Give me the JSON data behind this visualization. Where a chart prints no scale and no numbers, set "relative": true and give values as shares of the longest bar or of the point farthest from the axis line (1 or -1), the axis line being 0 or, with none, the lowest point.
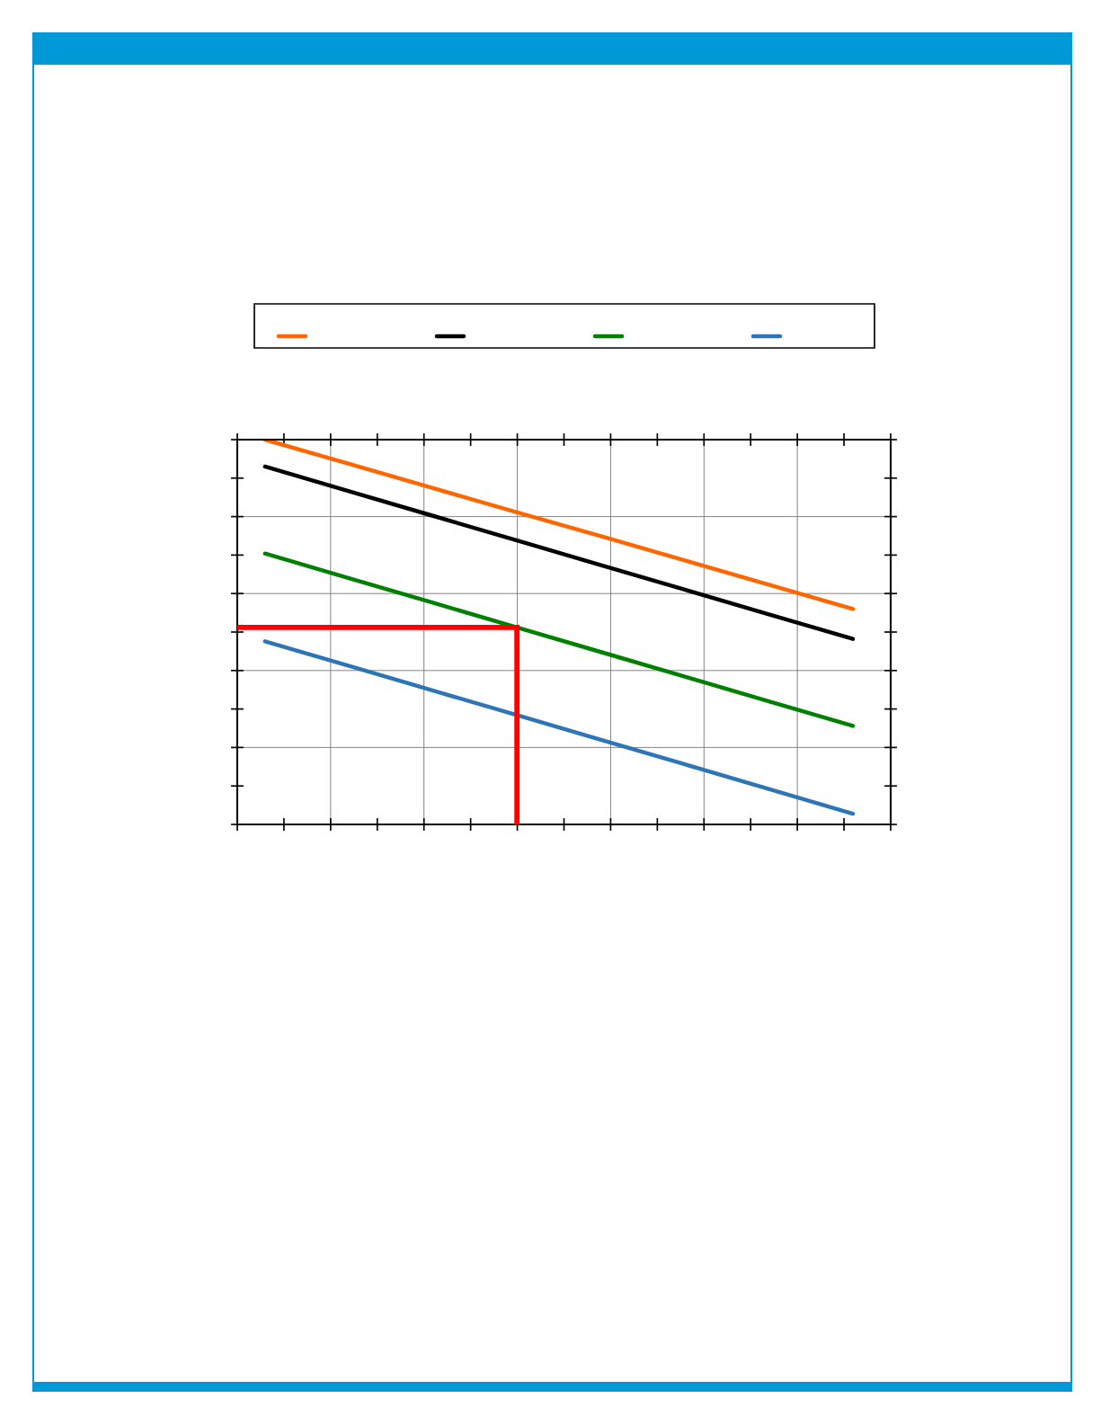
{
  "chart_data": {
    "type": "line",
    "relative": true,
    "categories": [
      null,
      null,
      null,
      null,
      null,
      null,
      null,
      null
    ],
    "series": [
      {
        "color": "#ff6600",
        "values": [
          1.0,
          0.937,
          0.874,
          0.811,
          0.749,
          0.686,
          0.623,
          0.56
        ]
      },
      {
        "color": "#000000",
        "values": [
          0.93,
          0.866,
          0.802,
          0.738,
          0.674,
          0.61,
          0.546,
          0.482
        ]
      },
      {
        "color": "#008000",
        "values": [
          0.704,
          0.64,
          0.576,
          0.512,
          0.448,
          0.384,
          0.32,
          0.256
        ]
      },
      {
        "color": "#2e75b6",
        "values": [
          0.476,
          0.412,
          0.348,
          0.284,
          0.22,
          0.156,
          0.092,
          0.028
        ]
      }
    ],
    "ref_lines": [
      {
        "axis": "y",
        "value": 0.512,
        "color": "#ff0000"
      }
    ],
    "grid": true,
    "tick_labels": false,
    "line_style": "solid",
    "marker": "none"
  }
}
